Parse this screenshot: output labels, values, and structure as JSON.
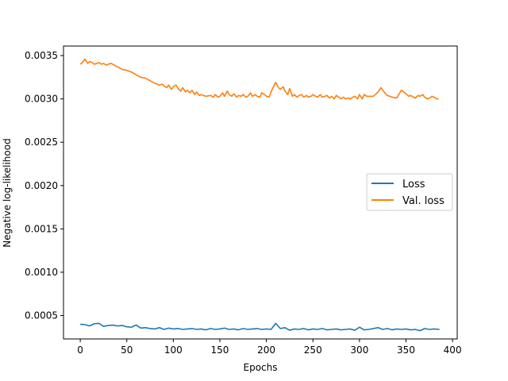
{
  "chart_data": {
    "type": "line",
    "title": "",
    "xlabel": "Epochs",
    "ylabel": "Negative log-likelihood",
    "xlim": [
      -18,
      405
    ],
    "ylim": [
      0.00023,
      0.00361
    ],
    "xticks": [
      0,
      50,
      100,
      150,
      200,
      250,
      300,
      350,
      400
    ],
    "yticks": [
      0.0005,
      0.001,
      0.0015,
      0.002,
      0.0025,
      0.003,
      0.0035
    ],
    "xtick_labels": [
      "0",
      "50",
      "100",
      "150",
      "200",
      "250",
      "300",
      "350",
      "400"
    ],
    "ytick_labels": [
      "0.0005",
      "0.0010",
      "0.0015",
      "0.0020",
      "0.0025",
      "0.0030",
      "0.0035"
    ],
    "grid": false,
    "legend_position": "center-right",
    "series": [
      {
        "name": "Loss",
        "color": "#1f77b4",
        "x": [
          0,
          5,
          10,
          15,
          20,
          25,
          30,
          35,
          40,
          45,
          50,
          55,
          60,
          65,
          70,
          75,
          80,
          85,
          90,
          95,
          100,
          105,
          110,
          115,
          120,
          125,
          130,
          135,
          140,
          145,
          150,
          155,
          160,
          165,
          170,
          175,
          180,
          185,
          190,
          195,
          200,
          205,
          210,
          215,
          220,
          225,
          230,
          235,
          240,
          245,
          250,
          255,
          260,
          265,
          270,
          275,
          280,
          285,
          290,
          295,
          300,
          305,
          310,
          315,
          320,
          325,
          330,
          335,
          340,
          345,
          350,
          355,
          360,
          365,
          370,
          375,
          380,
          386
        ],
        "y": [
          0.0004,
          0.000395,
          0.00038,
          0.000405,
          0.00041,
          0.000375,
          0.000385,
          0.00039,
          0.00038,
          0.000385,
          0.00037,
          0.000365,
          0.00039,
          0.000355,
          0.00036,
          0.00035,
          0.000345,
          0.00036,
          0.00034,
          0.000355,
          0.000345,
          0.00035,
          0.00034,
          0.000345,
          0.00035,
          0.00034,
          0.000345,
          0.000335,
          0.00035,
          0.00034,
          0.000345,
          0.000355,
          0.00034,
          0.000345,
          0.000335,
          0.00035,
          0.00034,
          0.000345,
          0.00035,
          0.00034,
          0.000345,
          0.00034,
          0.00041,
          0.00035,
          0.00036,
          0.00033,
          0.000345,
          0.00034,
          0.00035,
          0.000335,
          0.000345,
          0.00034,
          0.00035,
          0.000335,
          0.00034,
          0.000345,
          0.000335,
          0.00034,
          0.000345,
          0.00033,
          0.000365,
          0.000335,
          0.00034,
          0.00035,
          0.00036,
          0.00034,
          0.00035,
          0.000335,
          0.000345,
          0.00034,
          0.000345,
          0.000335,
          0.00034,
          0.000325,
          0.00035,
          0.00034,
          0.000345,
          0.00034
        ]
      },
      {
        "name": "Val. loss",
        "color": "#ff7f0e",
        "x": [
          0,
          3,
          5,
          8,
          10,
          13,
          15,
          18,
          20,
          23,
          25,
          28,
          30,
          33,
          35,
          38,
          40,
          45,
          50,
          55,
          60,
          65,
          70,
          75,
          80,
          85,
          88,
          90,
          93,
          95,
          98,
          100,
          103,
          105,
          108,
          110,
          113,
          115,
          118,
          120,
          123,
          125,
          128,
          130,
          135,
          140,
          143,
          145,
          148,
          150,
          153,
          155,
          158,
          160,
          163,
          165,
          168,
          170,
          173,
          175,
          178,
          180,
          183,
          185,
          188,
          190,
          193,
          195,
          198,
          200,
          203,
          205,
          208,
          210,
          213,
          215,
          218,
          220,
          223,
          225,
          228,
          230,
          233,
          235,
          238,
          240,
          243,
          245,
          248,
          250,
          253,
          255,
          258,
          260,
          263,
          265,
          268,
          270,
          273,
          275,
          278,
          280,
          283,
          285,
          288,
          290,
          293,
          295,
          298,
          300,
          303,
          305,
          308,
          310,
          315,
          320,
          323,
          325,
          328,
          330,
          335,
          340,
          345,
          350,
          353,
          355,
          358,
          360,
          363,
          365,
          368,
          370,
          373,
          375,
          378,
          380,
          383,
          385
        ],
        "y": [
          0.0034,
          0.00343,
          0.00346,
          0.00341,
          0.00343,
          0.00342,
          0.0034,
          0.00341,
          0.00342,
          0.0034,
          0.00341,
          0.00339,
          0.0034,
          0.00341,
          0.0034,
          0.00338,
          0.00337,
          0.00334,
          0.00333,
          0.00331,
          0.00328,
          0.00325,
          0.00324,
          0.00321,
          0.00318,
          0.00316,
          0.00317,
          0.00315,
          0.00313,
          0.00316,
          0.00311,
          0.00314,
          0.00316,
          0.00312,
          0.00309,
          0.00313,
          0.00308,
          0.0031,
          0.00307,
          0.0031,
          0.00305,
          0.00308,
          0.00304,
          0.00305,
          0.00303,
          0.00304,
          0.00302,
          0.00305,
          0.00302,
          0.00303,
          0.00307,
          0.00303,
          0.00309,
          0.00305,
          0.00303,
          0.00306,
          0.00302,
          0.00304,
          0.00303,
          0.00305,
          0.00302,
          0.00303,
          0.00307,
          0.00303,
          0.00305,
          0.00303,
          0.00302,
          0.00307,
          0.00305,
          0.00303,
          0.00302,
          0.00308,
          0.00315,
          0.00319,
          0.00313,
          0.00311,
          0.00314,
          0.00309,
          0.00305,
          0.00312,
          0.00303,
          0.00305,
          0.00302,
          0.00304,
          0.00305,
          0.00302,
          0.00304,
          0.00302,
          0.00303,
          0.00305,
          0.00303,
          0.00302,
          0.00305,
          0.00302,
          0.00303,
          0.00304,
          0.00301,
          0.00303,
          0.003,
          0.00304,
          0.00302,
          0.003,
          0.00302,
          0.003,
          0.00301,
          0.003,
          0.00302,
          0.00303,
          0.003,
          0.00305,
          0.003,
          0.00305,
          0.00303,
          0.00303,
          0.00303,
          0.00308,
          0.00313,
          0.0031,
          0.00306,
          0.00304,
          0.00302,
          0.00301,
          0.0031,
          0.00306,
          0.00303,
          0.00304,
          0.00302,
          0.00301,
          0.00304,
          0.00303,
          0.00305,
          0.00302,
          0.003,
          0.00301,
          0.00303,
          0.00302,
          0.003,
          0.003
        ]
      }
    ]
  }
}
